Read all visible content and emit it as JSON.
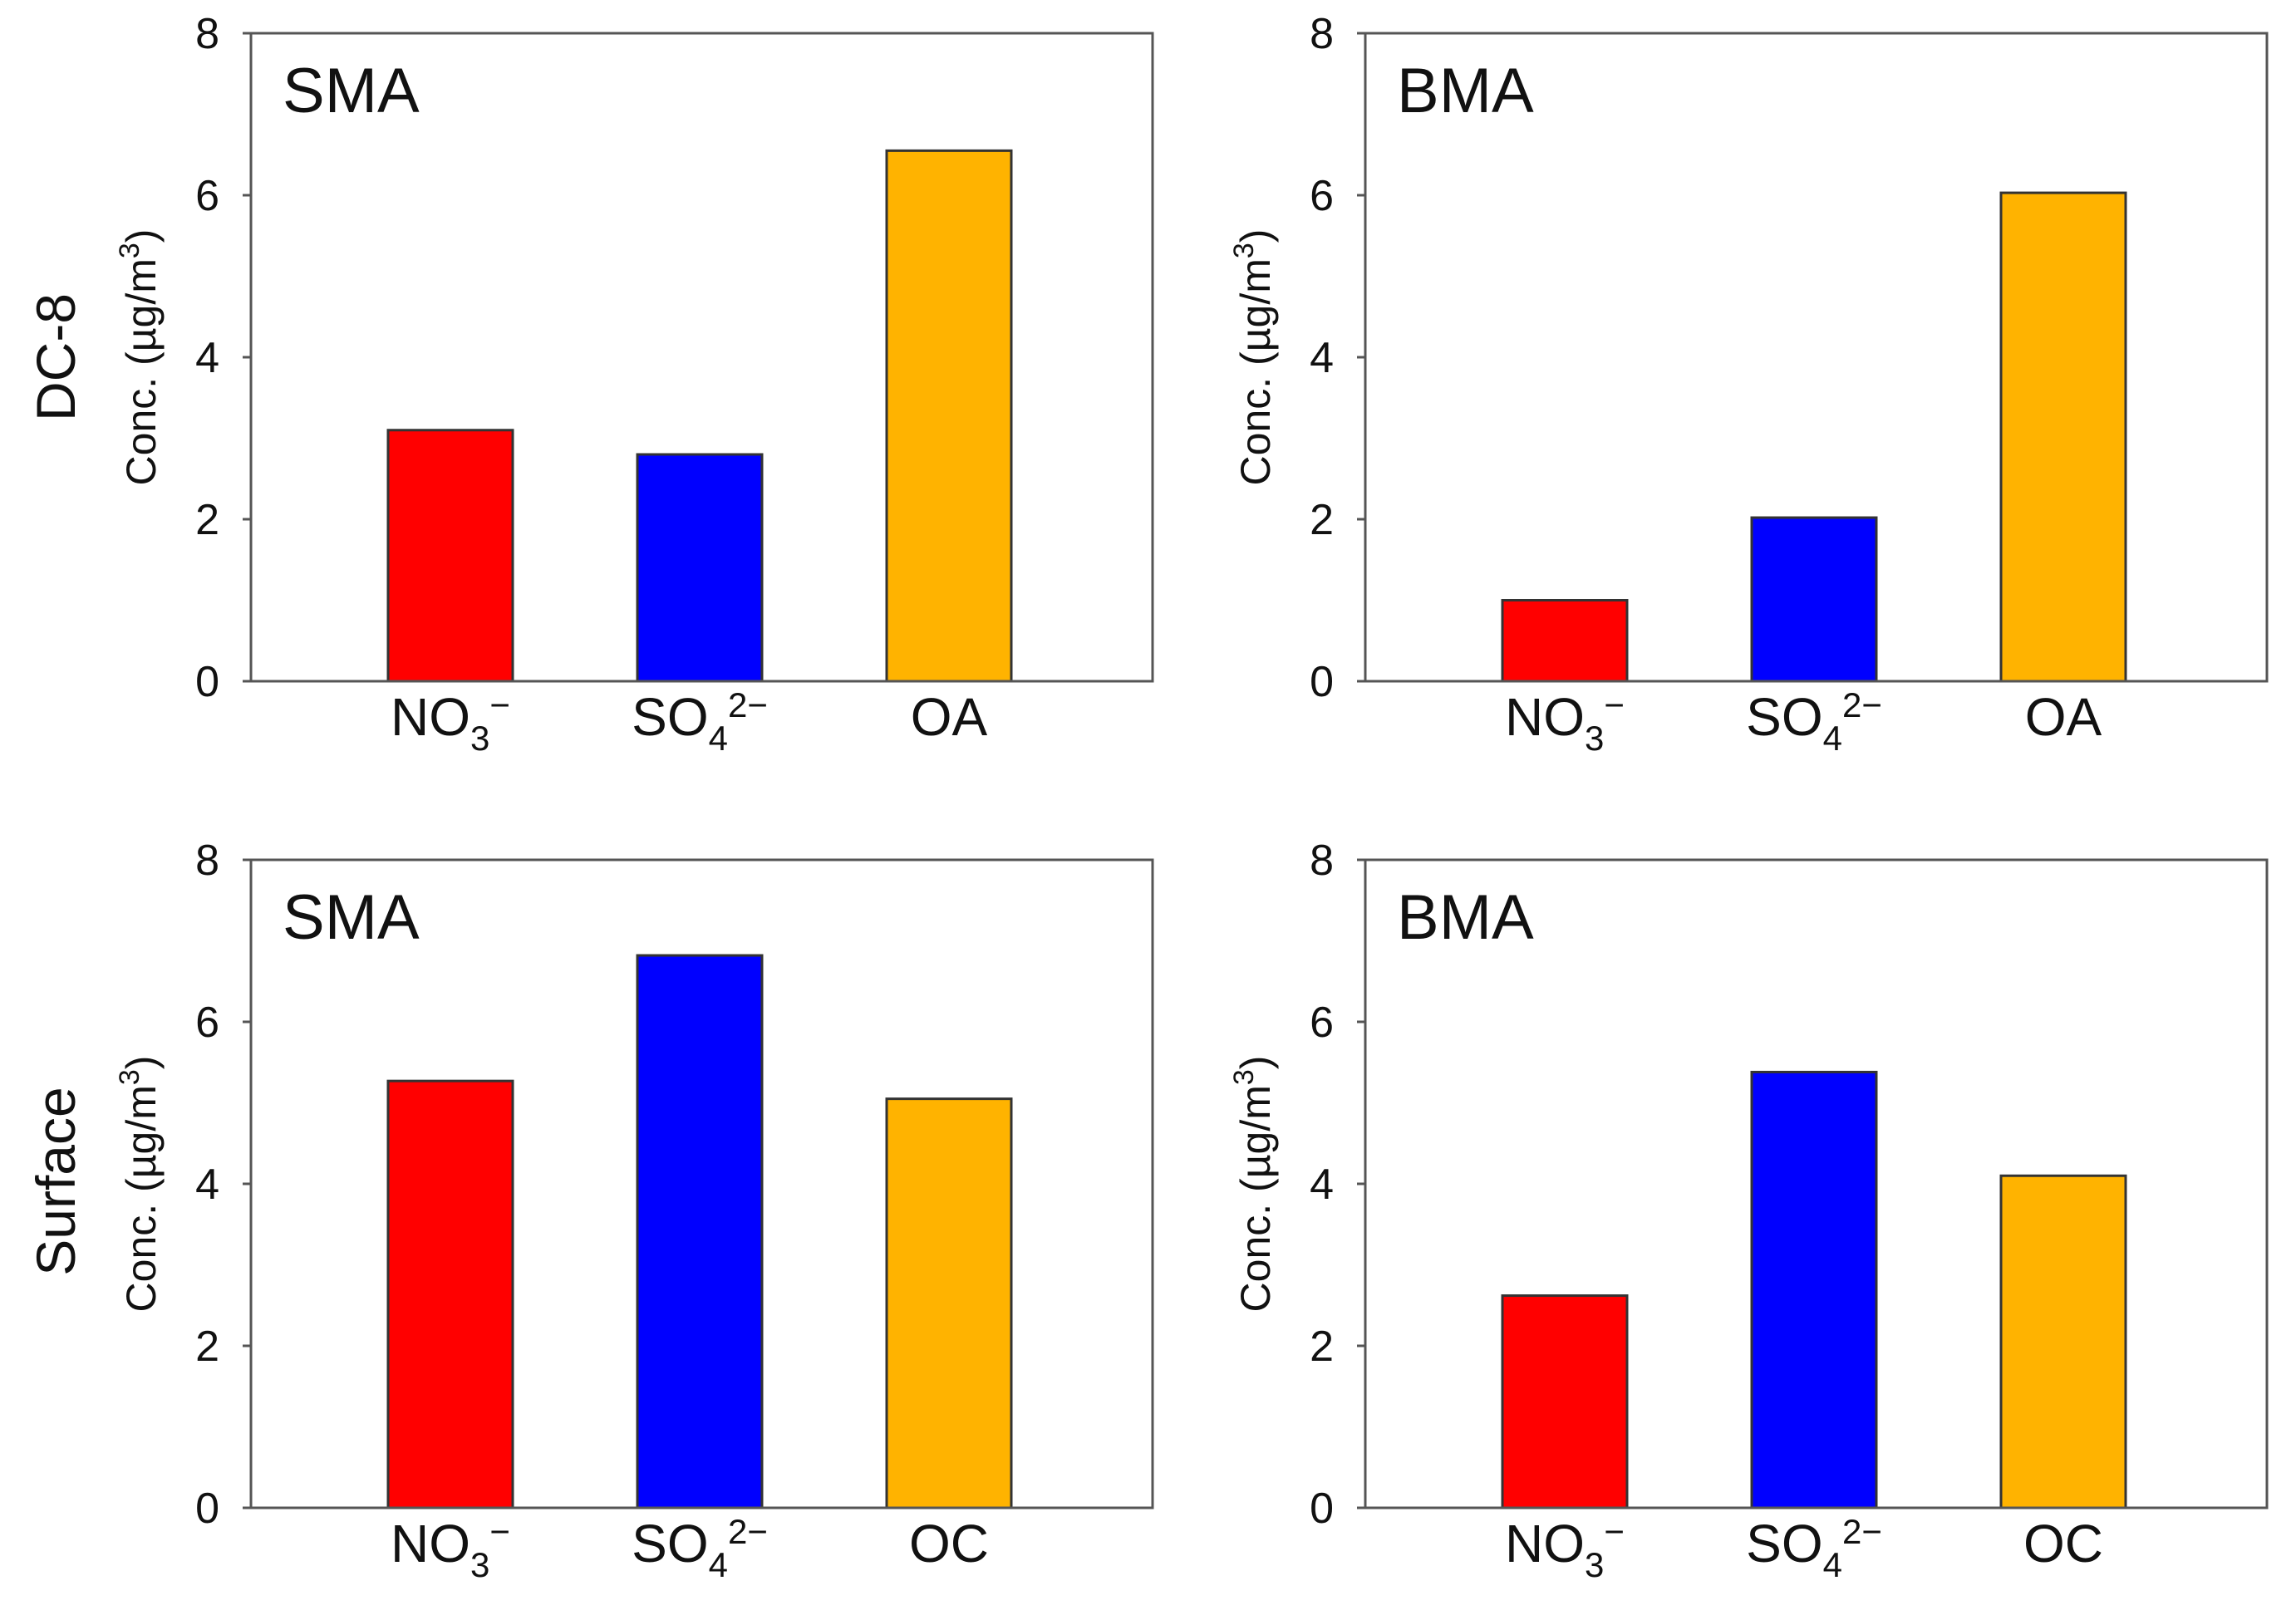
{
  "figure": {
    "row_labels": [
      "DC-8",
      "Surface"
    ],
    "colors": {
      "NO3": "#ff0000",
      "SO4": "#0000ff",
      "OA": "#ffb300"
    }
  },
  "chart_data": [
    {
      "type": "bar",
      "title": "SMA",
      "row": "DC-8",
      "ylabel": "Conc. (µg/m3)",
      "ylim": [
        0,
        8
      ],
      "yticks": [
        "0",
        "2",
        "4",
        "6",
        "8"
      ],
      "categories": [
        {
          "base": "NO",
          "sub": "3",
          "sup": "−"
        },
        {
          "base": "SO",
          "sub": "4",
          "sup": "2−"
        },
        {
          "base": "OA",
          "sub": "",
          "sup": ""
        }
      ],
      "values": [
        3.1,
        2.8,
        6.55
      ],
      "colors": [
        "#ff0000",
        "#0000ff",
        "#ffb300"
      ]
    },
    {
      "type": "bar",
      "title": "BMA",
      "row": "DC-8",
      "ylabel": "Conc. (µg/m3)",
      "ylim": [
        0,
        8
      ],
      "yticks": [
        "0",
        "2",
        "4",
        "6",
        "8"
      ],
      "categories": [
        {
          "base": "NO",
          "sub": "3",
          "sup": "−"
        },
        {
          "base": "SO",
          "sub": "4",
          "sup": "2−"
        },
        {
          "base": "OA",
          "sub": "",
          "sup": ""
        }
      ],
      "values": [
        1.0,
        2.02,
        6.03
      ],
      "colors": [
        "#ff0000",
        "#0000ff",
        "#ffb300"
      ]
    },
    {
      "type": "bar",
      "title": "SMA",
      "row": "Surface",
      "ylabel": "Conc. (µg/m3)",
      "ylim": [
        0,
        8
      ],
      "yticks": [
        "0",
        "2",
        "4",
        "6",
        "8"
      ],
      "categories": [
        {
          "base": "NO",
          "sub": "3",
          "sup": "−"
        },
        {
          "base": "SO",
          "sub": "4",
          "sup": "2−"
        },
        {
          "base": "OC",
          "sub": "",
          "sup": ""
        }
      ],
      "values": [
        5.27,
        6.82,
        5.05
      ],
      "colors": [
        "#ff0000",
        "#0000ff",
        "#ffb300"
      ]
    },
    {
      "type": "bar",
      "title": "BMA",
      "row": "Surface",
      "ylabel": "Conc. (µg/m3)",
      "ylim": [
        0,
        8
      ],
      "yticks": [
        "0",
        "2",
        "4",
        "6",
        "8"
      ],
      "categories": [
        {
          "base": "NO",
          "sub": "3",
          "sup": "−"
        },
        {
          "base": "SO",
          "sub": "4",
          "sup": "2−"
        },
        {
          "base": "OC",
          "sub": "",
          "sup": ""
        }
      ],
      "values": [
        2.62,
        5.38,
        4.1
      ],
      "colors": [
        "#ff0000",
        "#0000ff",
        "#ffb300"
      ]
    }
  ]
}
